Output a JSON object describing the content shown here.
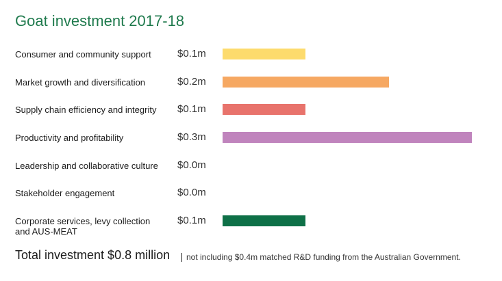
{
  "chart_data": {
    "type": "bar",
    "title": "Goat investment 2017-18",
    "categories": [
      "Consumer and community support",
      "Market growth and diversification",
      "Supply chain efficiency and integrity",
      "Productivity and profitability",
      "Leadership and collaborative culture",
      "Stakeholder engagement",
      "Corporate services, levy collection and AUS-MEAT"
    ],
    "value_labels": [
      "$0.1m",
      "$0.2m",
      "$0.1m",
      "$0.3m",
      "$0.0m",
      "$0.0m",
      "$0.1m"
    ],
    "values": [
      0.1,
      0.2,
      0.1,
      0.3,
      0.0,
      0.0,
      0.1
    ],
    "colors": [
      "#fddb6d",
      "#f6a862",
      "#e8736c",
      "#c084bd",
      "#ffffff",
      "#ffffff",
      "#0e7047"
    ],
    "xlim": [
      0,
      0.3
    ],
    "unit": "$m"
  },
  "footer": {
    "total": "Total investment $0.8 million",
    "note": "not including $0.4m matched R&D funding from the Australian Government."
  }
}
